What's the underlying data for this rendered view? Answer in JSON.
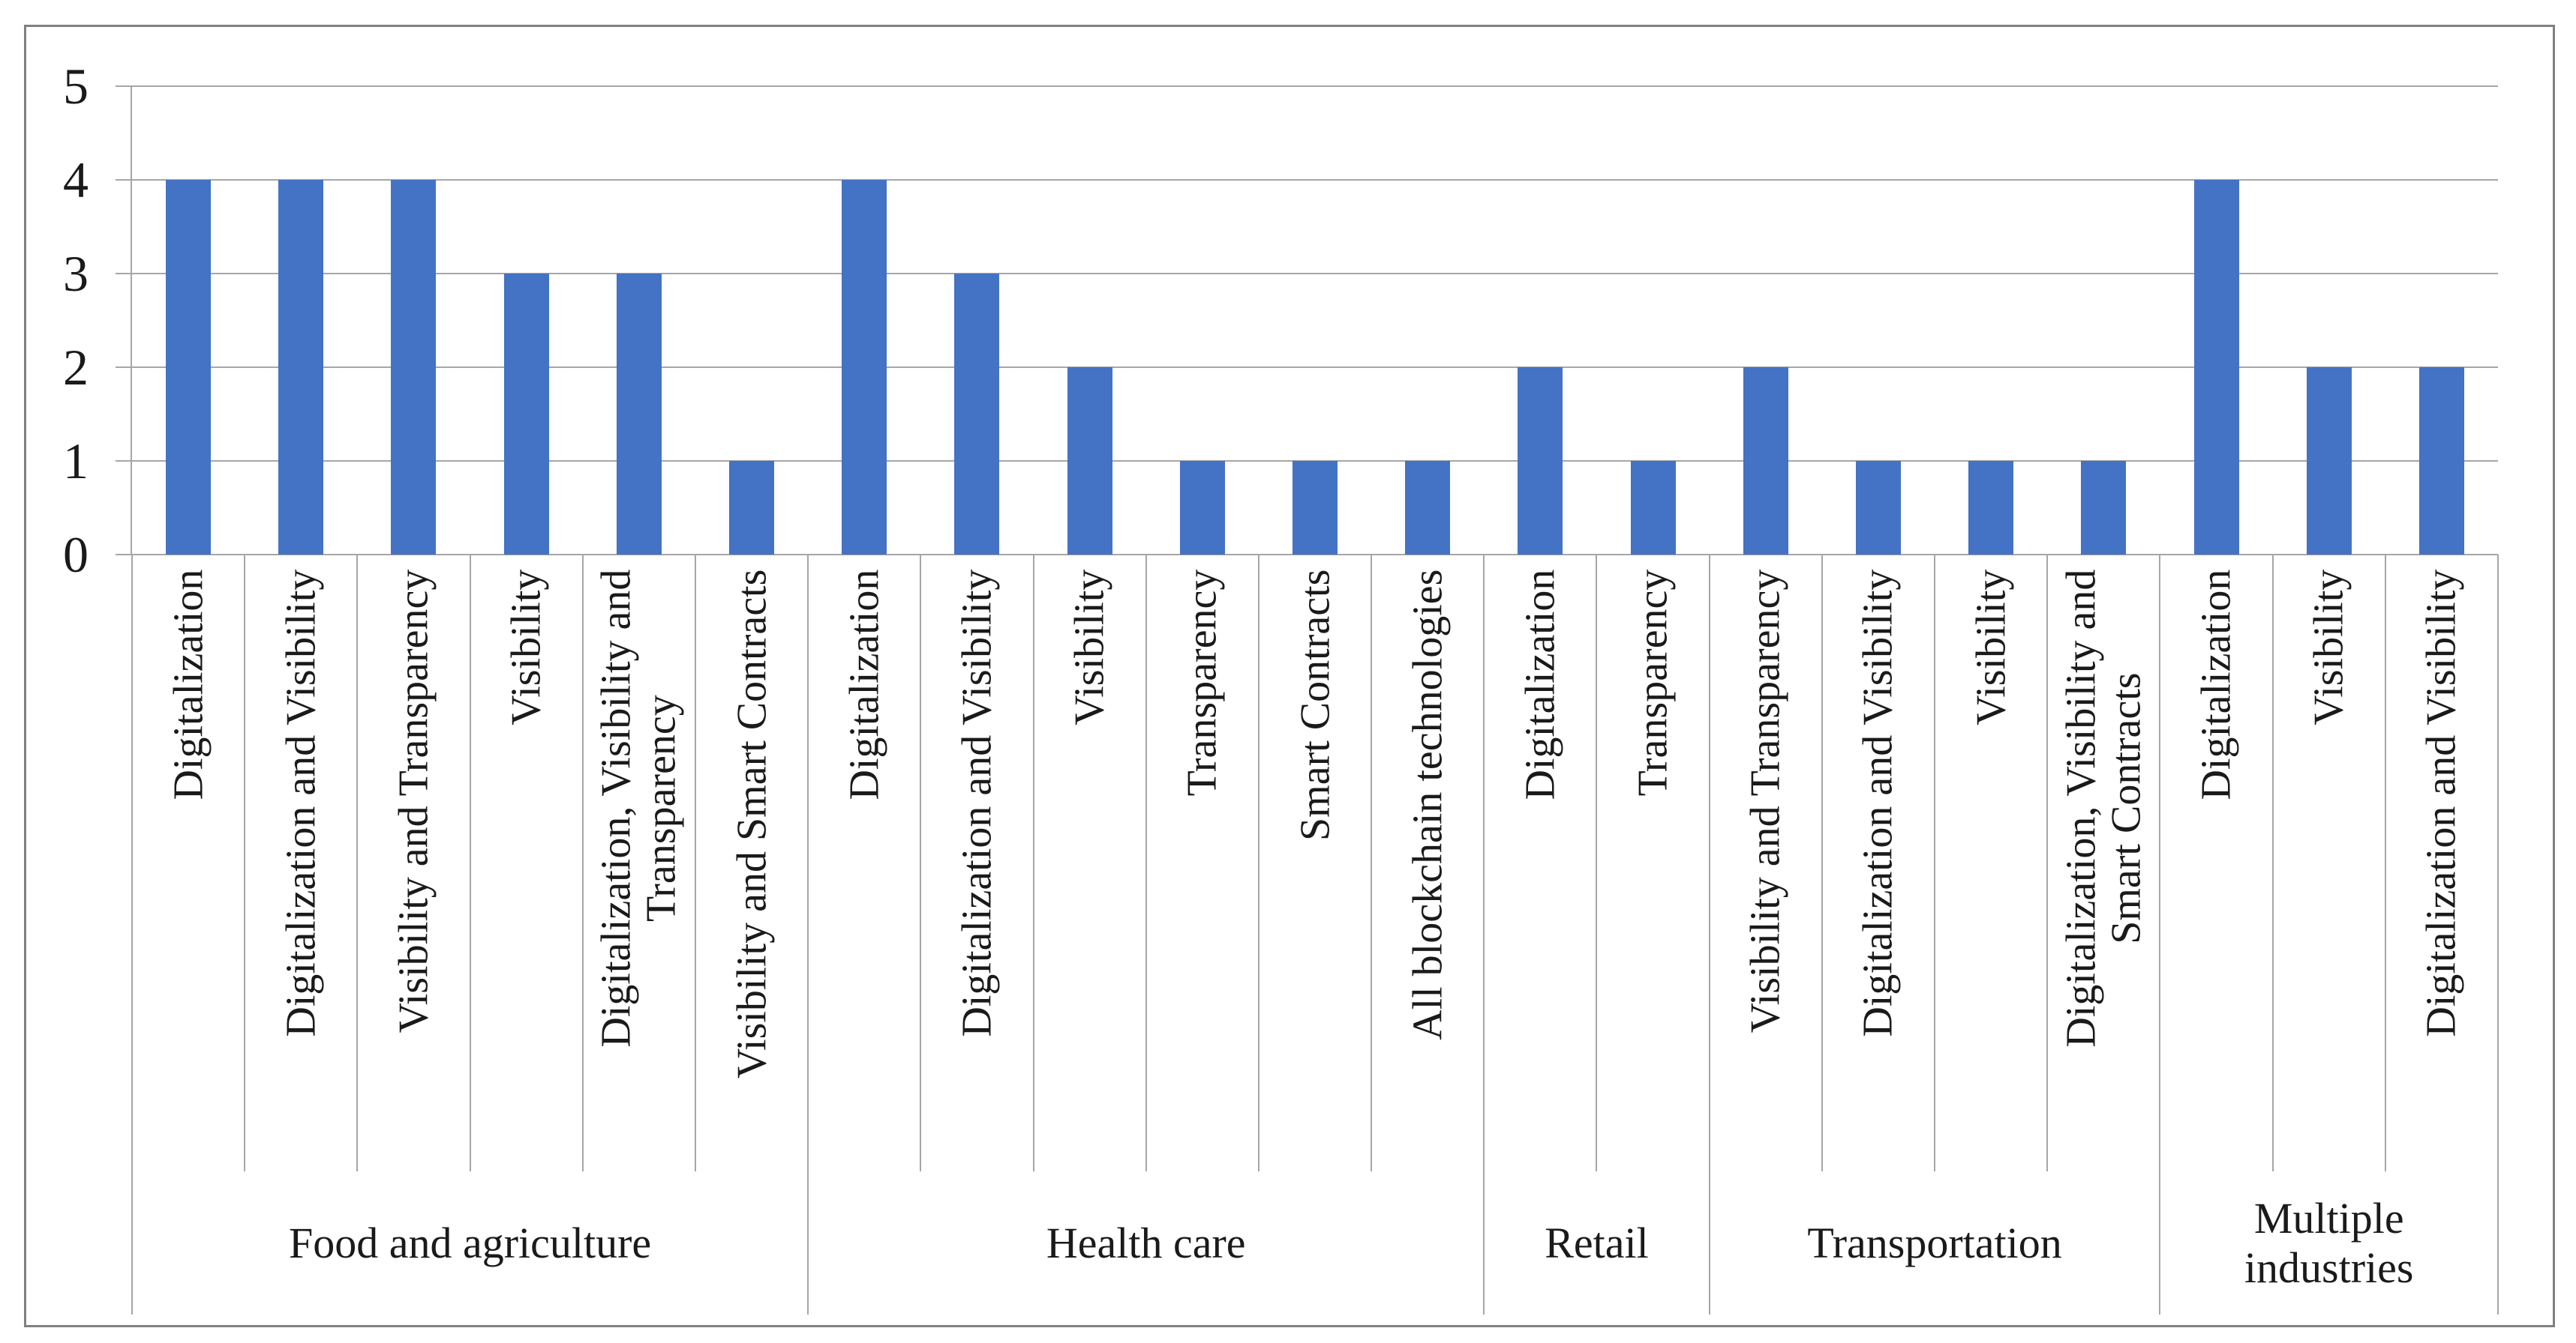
{
  "chart": {
    "bar_color": "#4472C4",
    "gridline_color": "#A6A6A6",
    "frame_color": "#808080",
    "y_axis": {
      "ticks": [
        "5",
        "4",
        "3",
        "2",
        "1",
        "0"
      ],
      "max": 5,
      "min": 0
    },
    "groups": [
      {
        "label": "Food and agriculture",
        "label_lines": [
          "Food and agriculture"
        ],
        "categories": [
          {
            "lines": [
              "Digitalization"
            ],
            "value": 4
          },
          {
            "lines": [
              "Digitalization and Visibility"
            ],
            "value": 4
          },
          {
            "lines": [
              "Visibility and Transparency"
            ],
            "value": 4
          },
          {
            "lines": [
              "Visibility"
            ],
            "value": 3
          },
          {
            "lines": [
              "Digitalization, Visibility and",
              "Transparency"
            ],
            "value": 3
          },
          {
            "lines": [
              "Visibility and Smart Contracts"
            ],
            "value": 1
          }
        ]
      },
      {
        "label": "Health care",
        "label_lines": [
          "Health care"
        ],
        "categories": [
          {
            "lines": [
              "Digitalization"
            ],
            "value": 4
          },
          {
            "lines": [
              "Digitalization and Visibility"
            ],
            "value": 3
          },
          {
            "lines": [
              "Visibility"
            ],
            "value": 2
          },
          {
            "lines": [
              "Transparency"
            ],
            "value": 1
          },
          {
            "lines": [
              "Smart Contracts"
            ],
            "value": 1
          },
          {
            "lines": [
              "All blockchain technologies"
            ],
            "value": 1
          }
        ]
      },
      {
        "label": "Retail",
        "label_lines": [
          "Retail"
        ],
        "categories": [
          {
            "lines": [
              "Digitalization"
            ],
            "value": 2
          },
          {
            "lines": [
              "Transparency"
            ],
            "value": 1
          }
        ]
      },
      {
        "label": "Transportation",
        "label_lines": [
          "Transportation"
        ],
        "categories": [
          {
            "lines": [
              "Visibility and Transparency"
            ],
            "value": 2
          },
          {
            "lines": [
              "Digitalization and Visibility"
            ],
            "value": 1
          },
          {
            "lines": [
              "Visibility"
            ],
            "value": 1
          },
          {
            "lines": [
              "Digitalization, Visibility and",
              "Smart Contracts"
            ],
            "value": 1
          }
        ]
      },
      {
        "label": "Multiple industries",
        "label_lines": [
          "Multiple",
          "industries"
        ],
        "categories": [
          {
            "lines": [
              "Digitalization"
            ],
            "value": 4
          },
          {
            "lines": [
              "Visibility"
            ],
            "value": 2
          },
          {
            "lines": [
              "Digitalization and Visibility"
            ],
            "value": 2
          }
        ]
      }
    ]
  },
  "chart_data": {
    "type": "bar",
    "title": "",
    "xlabel": "",
    "ylabel": "",
    "ylim": [
      0,
      5
    ],
    "yticks": [
      0,
      1,
      2,
      3,
      4,
      5
    ],
    "grid": true,
    "legend": false,
    "bar_color": "#4472C4",
    "categories": [
      "Digitalization",
      "Digitalization and Visibility",
      "Visibility and Transparency",
      "Visibility",
      "Digitalization, Visibility and Transparency",
      "Visibility and Smart Contracts",
      "Digitalization",
      "Digitalization and Visibility",
      "Visibility",
      "Transparency",
      "Smart Contracts",
      "All blockchain technologies",
      "Digitalization",
      "Transparency",
      "Visibility and Transparency",
      "Digitalization and Visibility",
      "Visibility",
      "Digitalization, Visibility and Smart Contracts",
      "Digitalization",
      "Visibility",
      "Digitalization and Visibility"
    ],
    "values": [
      4,
      4,
      4,
      3,
      3,
      1,
      4,
      3,
      2,
      1,
      1,
      1,
      2,
      1,
      2,
      1,
      1,
      1,
      4,
      2,
      2
    ],
    "groups": [
      {
        "label": "Food and agriculture",
        "count": 6
      },
      {
        "label": "Health care",
        "count": 6
      },
      {
        "label": "Retail",
        "count": 2
      },
      {
        "label": "Transportation",
        "count": 4
      },
      {
        "label": "Multiple industries",
        "count": 3
      }
    ]
  }
}
